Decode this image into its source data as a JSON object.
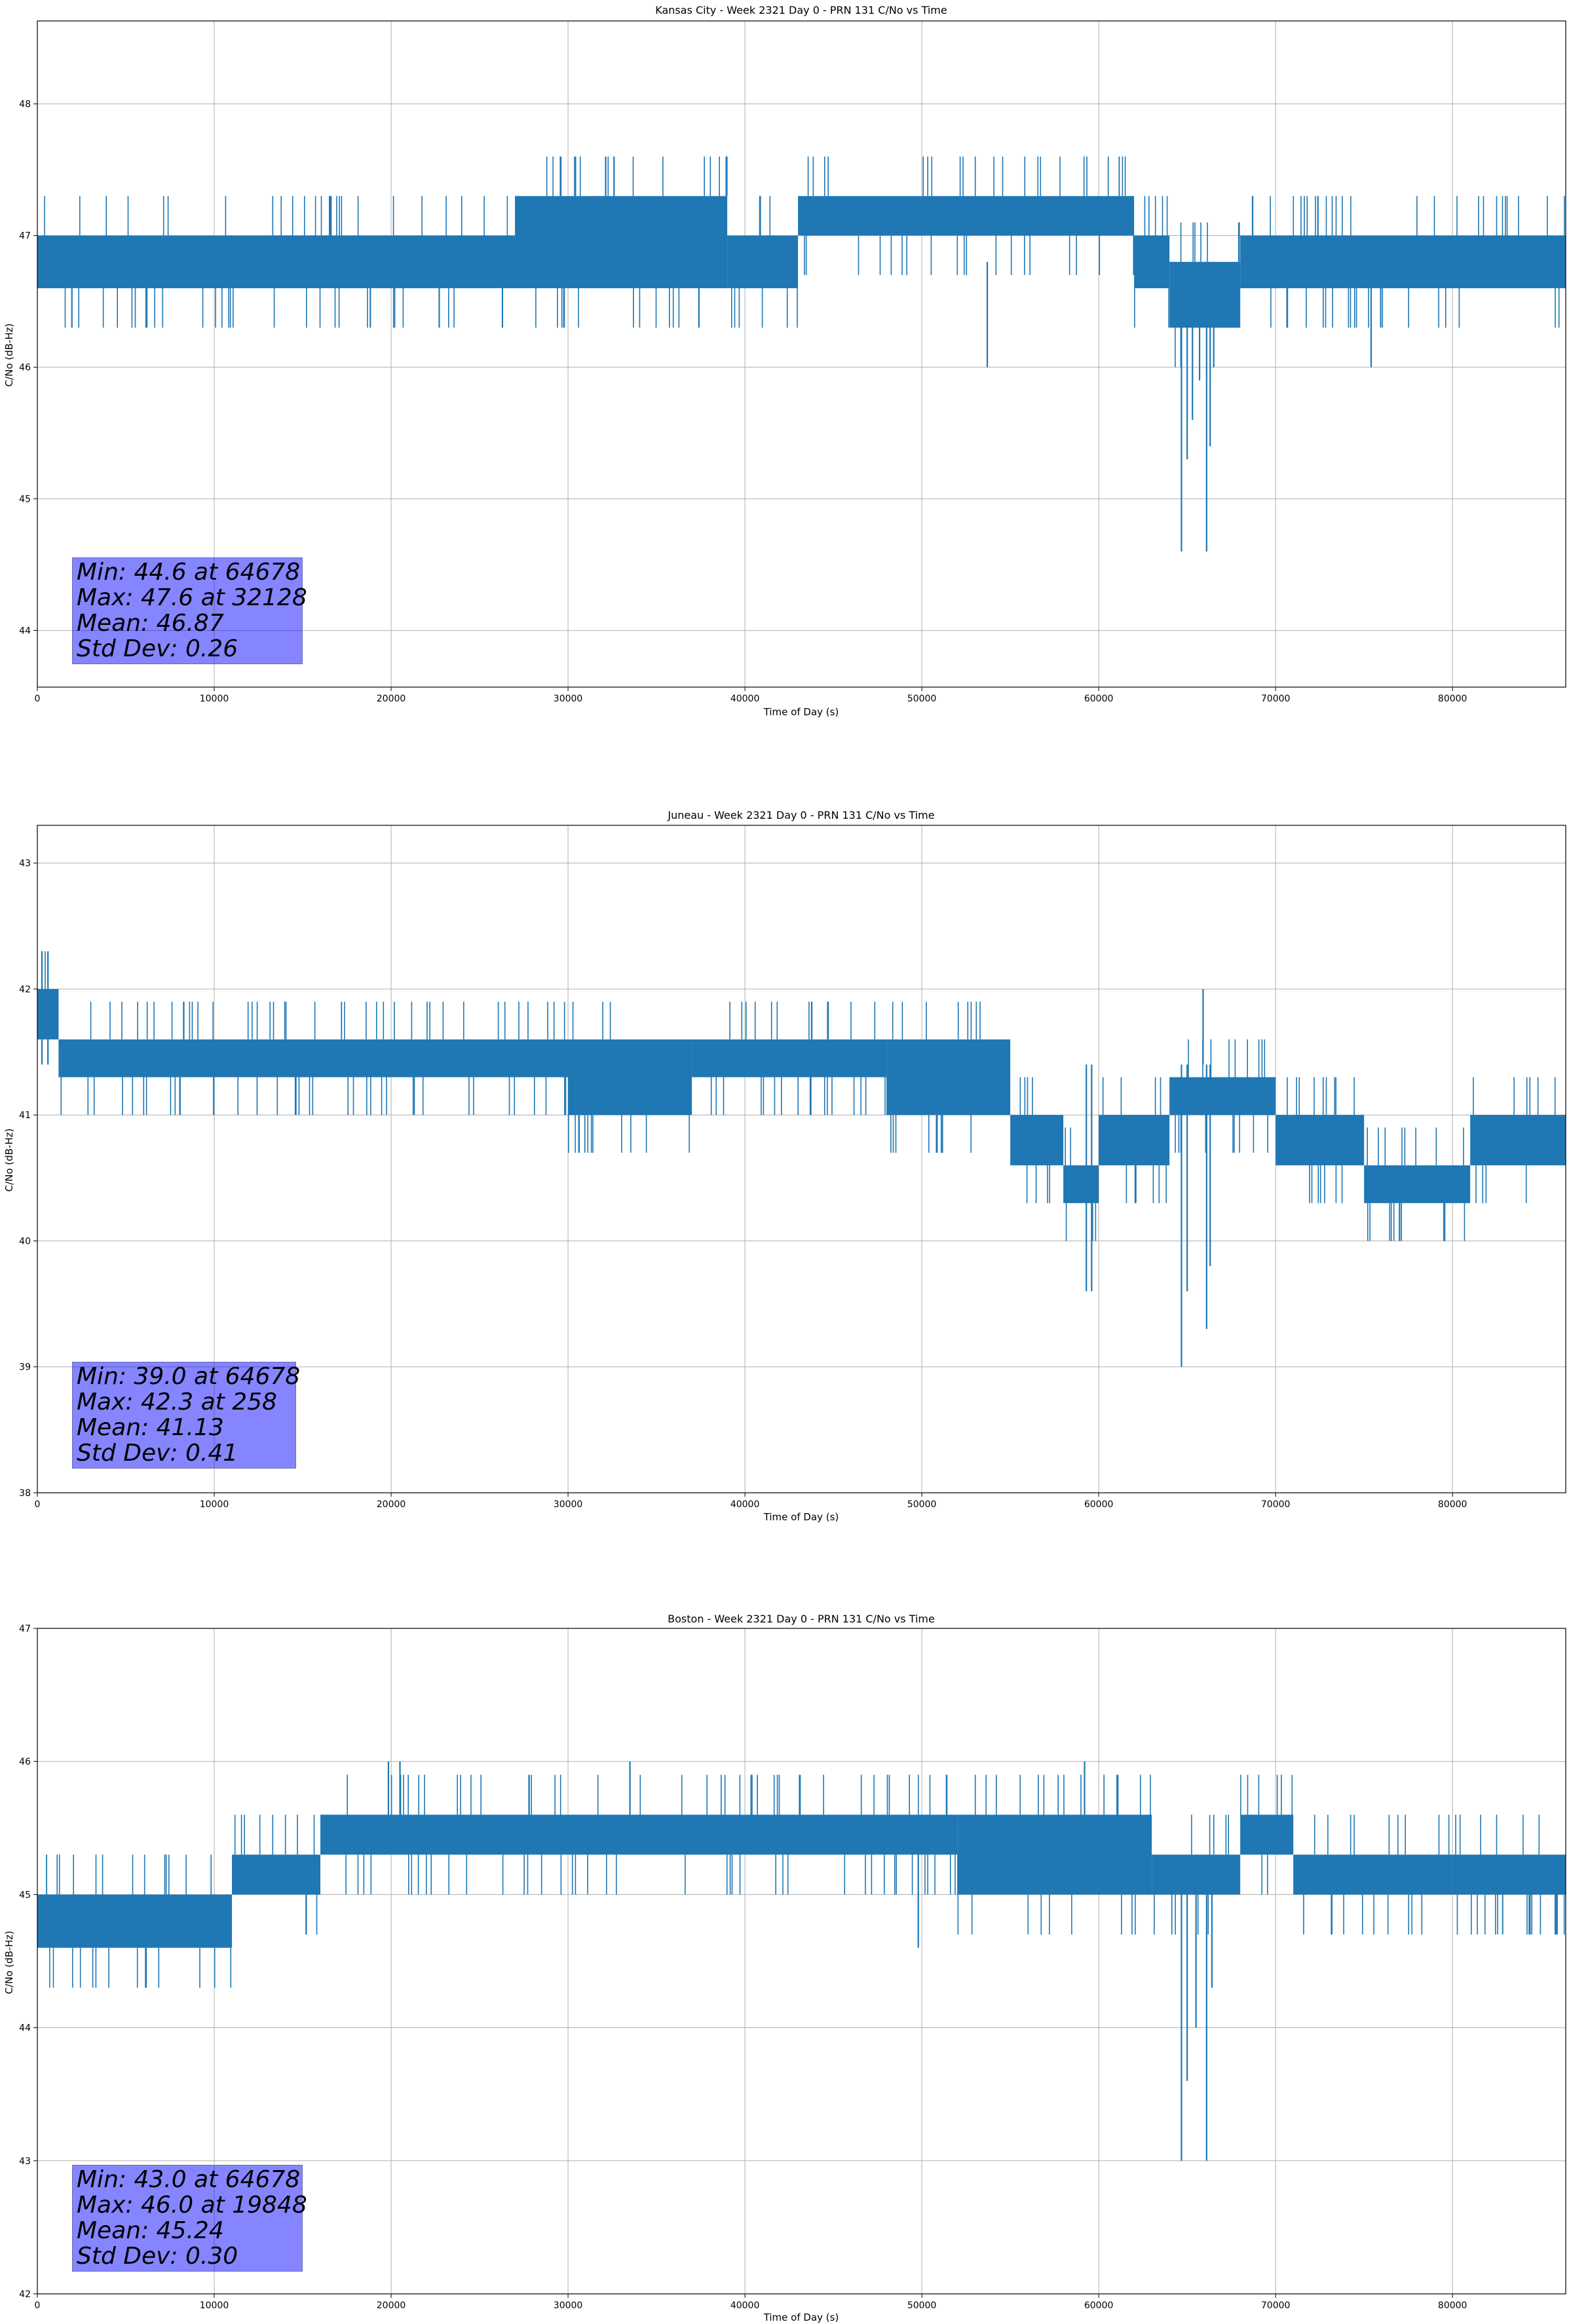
{
  "chart_data": [
    {
      "type": "line",
      "title": "Kansas City - Week 2321 Day 0 - PRN 131 C/No vs Time",
      "xlabel": "Time of Day (s)",
      "ylabel": "C/No (dB-Hz)",
      "xlim": [
        0,
        86400
      ],
      "ylim": [
        43.57,
        48.63
      ],
      "xticks": [
        0,
        10000,
        20000,
        30000,
        40000,
        50000,
        60000,
        70000,
        80000
      ],
      "yticks": [
        44,
        45,
        46,
        47,
        48
      ],
      "grid": true,
      "color": "#1f77b4",
      "base_value": 46.8,
      "band_segments": [
        {
          "x": [
            0,
            16000
          ],
          "low": 46.6,
          "high": 47.0
        },
        {
          "x": [
            16000,
            27000
          ],
          "low": 46.6,
          "high": 47.0
        },
        {
          "x": [
            27000,
            39000
          ],
          "low": 46.6,
          "high": 47.3
        },
        {
          "x": [
            39000,
            43000
          ],
          "low": 46.6,
          "high": 47.0
        },
        {
          "x": [
            43000,
            62000
          ],
          "low": 47.0,
          "high": 47.3
        },
        {
          "x": [
            62000,
            64000
          ],
          "low": 46.6,
          "high": 47.0
        },
        {
          "x": [
            64000,
            68000
          ],
          "low": 46.3,
          "high": 46.8
        },
        {
          "x": [
            68000,
            86400
          ],
          "low": 46.6,
          "high": 47.0
        }
      ],
      "spikes": [
        {
          "x": 32128,
          "y": 47.6
        },
        {
          "x": 32600,
          "y": 47.6
        },
        {
          "x": 31500,
          "y": 47.3
        },
        {
          "x": 53700,
          "y": 46.0
        },
        {
          "x": 75400,
          "y": 46.0
        },
        {
          "x": 37400,
          "y": 46.3
        },
        {
          "x": 64678,
          "y": 44.6
        },
        {
          "x": 65000,
          "y": 45.3
        },
        {
          "x": 65300,
          "y": 45.6
        },
        {
          "x": 65700,
          "y": 45.9
        },
        {
          "x": 66100,
          "y": 44.6
        },
        {
          "x": 66300,
          "y": 45.4
        },
        {
          "x": 66500,
          "y": 46.0
        }
      ],
      "stats": [
        "Min: 44.6 at 64678",
        "Max: 47.6 at 32128",
        "Mean: 46.87",
        "Std Dev: 0.26"
      ]
    },
    {
      "type": "line",
      "title": "Juneau - Week 2321 Day 0 - PRN 131 C/No vs Time",
      "xlabel": "Time of Day (s)",
      "ylabel": "C/No (dB-Hz)",
      "xlim": [
        0,
        86400
      ],
      "ylim": [
        38,
        43.3
      ],
      "xticks": [
        0,
        10000,
        20000,
        30000,
        40000,
        50000,
        60000,
        70000,
        80000
      ],
      "yticks": [
        38,
        39,
        40,
        41,
        42,
        43
      ],
      "grid": true,
      "color": "#1f77b4",
      "base_value": 41.4,
      "band_segments": [
        {
          "x": [
            0,
            1200
          ],
          "low": 41.6,
          "high": 42.0
        },
        {
          "x": [
            1200,
            14000
          ],
          "low": 41.3,
          "high": 41.6
        },
        {
          "x": [
            14000,
            30000
          ],
          "low": 41.3,
          "high": 41.6
        },
        {
          "x": [
            30000,
            37000
          ],
          "low": 41.0,
          "high": 41.6
        },
        {
          "x": [
            37000,
            48000
          ],
          "low": 41.3,
          "high": 41.6
        },
        {
          "x": [
            48000,
            55000
          ],
          "low": 41.0,
          "high": 41.6
        },
        {
          "x": [
            55000,
            58000
          ],
          "low": 40.6,
          "high": 41.0
        },
        {
          "x": [
            58000,
            60000
          ],
          "low": 40.3,
          "high": 40.6
        },
        {
          "x": [
            60000,
            64000
          ],
          "low": 40.6,
          "high": 41.0
        },
        {
          "x": [
            64000,
            70000
          ],
          "low": 41.0,
          "high": 41.3
        },
        {
          "x": [
            70000,
            75000
          ],
          "low": 40.6,
          "high": 41.0
        },
        {
          "x": [
            75000,
            81000
          ],
          "low": 40.3,
          "high": 40.6
        },
        {
          "x": [
            81000,
            86400
          ],
          "low": 40.6,
          "high": 41.0
        }
      ],
      "spikes": [
        {
          "x": 258,
          "y": 42.3
        },
        {
          "x": 600,
          "y": 42.3
        },
        {
          "x": 59300,
          "y": 39.6
        },
        {
          "x": 59600,
          "y": 39.6
        },
        {
          "x": 64678,
          "y": 39.0
        },
        {
          "x": 65000,
          "y": 39.6
        },
        {
          "x": 65900,
          "y": 42.0
        },
        {
          "x": 66100,
          "y": 39.3
        },
        {
          "x": 66300,
          "y": 39.8
        }
      ],
      "stats": [
        "Min: 39.0 at 64678",
        "Max: 42.3 at 258",
        "Mean: 41.13",
        "Std Dev: 0.41"
      ]
    },
    {
      "type": "line",
      "title": "Boston - Week 2321 Day 0 - PRN 131 C/No vs Time",
      "xlabel": "Time of Day (s)",
      "ylabel": "C/No (dB-Hz)",
      "xlim": [
        0,
        86400
      ],
      "ylim": [
        42,
        47
      ],
      "xticks": [
        0,
        10000,
        20000,
        30000,
        40000,
        50000,
        60000,
        70000,
        80000
      ],
      "yticks": [
        42,
        43,
        44,
        45,
        46,
        47
      ],
      "grid": true,
      "color": "#1f77b4",
      "base_value": 45.3,
      "band_segments": [
        {
          "x": [
            0,
            11000
          ],
          "low": 44.6,
          "high": 45.0
        },
        {
          "x": [
            11000,
            16000
          ],
          "low": 45.0,
          "high": 45.3
        },
        {
          "x": [
            16000,
            52000
          ],
          "low": 45.3,
          "high": 45.6
        },
        {
          "x": [
            52000,
            63000
          ],
          "low": 45.0,
          "high": 45.6
        },
        {
          "x": [
            63000,
            68000
          ],
          "low": 45.0,
          "high": 45.3
        },
        {
          "x": [
            68000,
            71000
          ],
          "low": 45.3,
          "high": 45.6
        },
        {
          "x": [
            71000,
            80000
          ],
          "low": 45.0,
          "high": 45.3
        },
        {
          "x": [
            80000,
            86400
          ],
          "low": 45.0,
          "high": 45.3
        }
      ],
      "spikes": [
        {
          "x": 19848,
          "y": 46.0
        },
        {
          "x": 20500,
          "y": 46.0
        },
        {
          "x": 33500,
          "y": 46.0
        },
        {
          "x": 49800,
          "y": 44.6
        },
        {
          "x": 59200,
          "y": 46.0
        },
        {
          "x": 64678,
          "y": 43.0
        },
        {
          "x": 65000,
          "y": 43.6
        },
        {
          "x": 65500,
          "y": 44.0
        },
        {
          "x": 66100,
          "y": 43.0
        },
        {
          "x": 66400,
          "y": 44.3
        }
      ],
      "stats": [
        "Min: 43.0 at 64678",
        "Max: 46.0 at 19848",
        "Mean: 45.24",
        "Std Dev: 0.30"
      ]
    }
  ]
}
